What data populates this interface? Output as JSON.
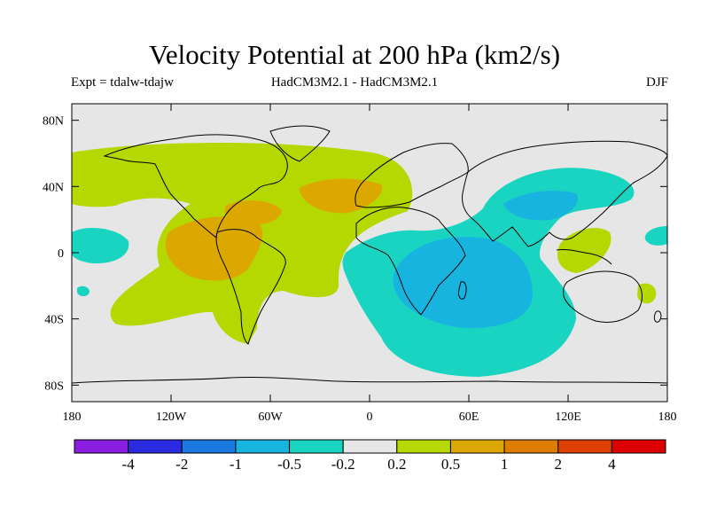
{
  "title": "Velocity Potential at 200 hPa (km2/s)",
  "experiment": "Expt = tdalw-tdajw",
  "models": "HadCM3M2.1 - HadCM3M2.1",
  "season": "DJF",
  "map": {
    "lon_range": [
      -180,
      180
    ],
    "lat_range": [
      -90,
      90
    ],
    "lon_ticks": [
      {
        "value": -180,
        "label": "180"
      },
      {
        "value": -120,
        "label": "120W"
      },
      {
        "value": -60,
        "label": "60W"
      },
      {
        "value": 0,
        "label": "0"
      },
      {
        "value": 60,
        "label": "60E"
      },
      {
        "value": 120,
        "label": "120E"
      },
      {
        "value": 180,
        "label": "180"
      }
    ],
    "lat_ticks": [
      {
        "value": 80,
        "label": "80N"
      },
      {
        "value": 40,
        "label": "40N"
      },
      {
        "value": 0,
        "label": "0"
      },
      {
        "value": -40,
        "label": "40S"
      },
      {
        "value": -80,
        "label": "80S"
      }
    ],
    "colors": {
      "background": "#e6e6e6",
      "coastline": "#000000"
    }
  },
  "colorbar": {
    "colors": [
      "#8a1ee0",
      "#2a2ae0",
      "#1a78e0",
      "#18b4e0",
      "#18d4c0",
      "#e6e6e6",
      "#b4d800",
      "#dca800",
      "#dc7c00",
      "#dc4000",
      "#dc0000"
    ],
    "labels": [
      "-4",
      "-2",
      "-1",
      "-0.5",
      "-0.2",
      "0.2",
      "0.5",
      "1",
      "2",
      "4"
    ]
  }
}
